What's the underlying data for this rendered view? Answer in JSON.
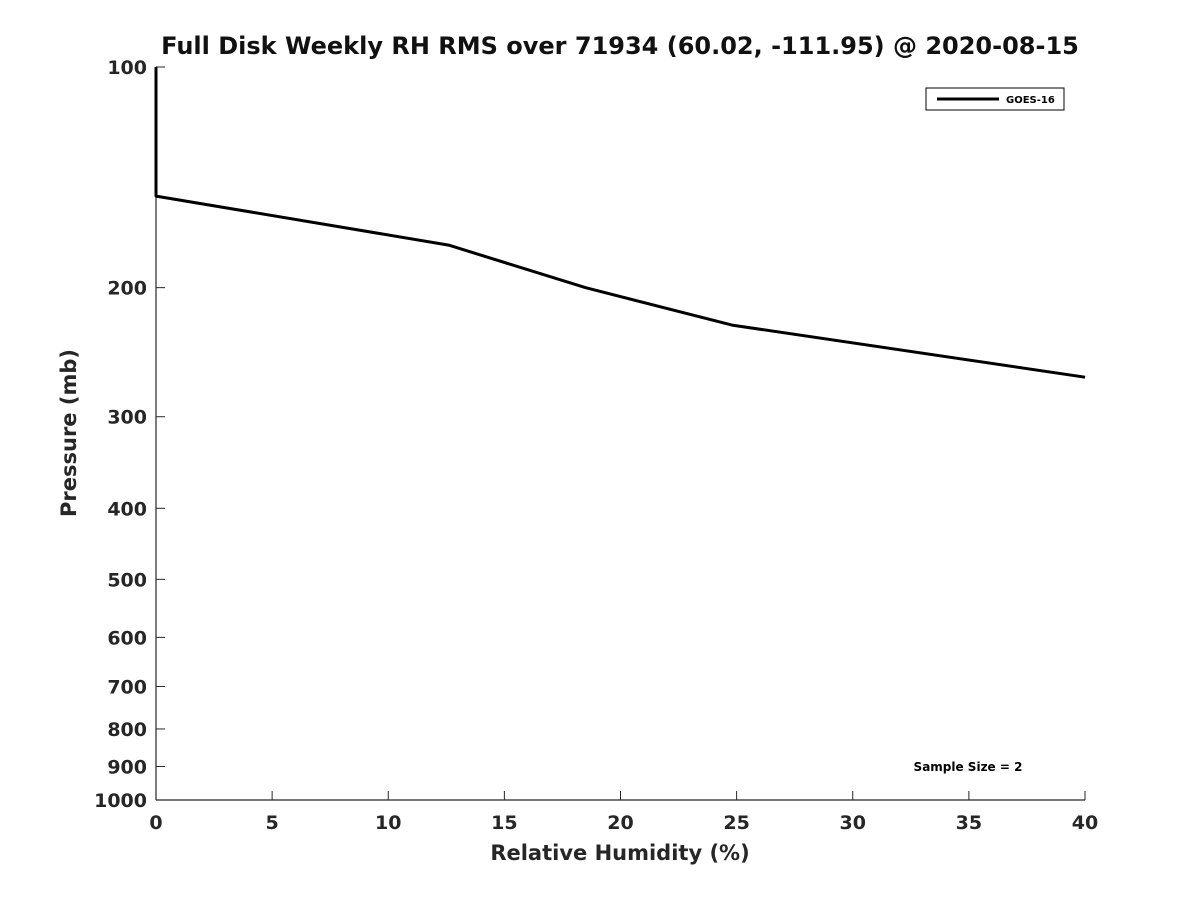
{
  "chart_data": {
    "type": "line",
    "title": "Full Disk Weekly RH RMS over 71934 (60.02, -111.95) @ 2020-08-15",
    "xlabel": "Relative Humidity (%)",
    "ylabel": "Pressure (mb)",
    "xlim": [
      0,
      40
    ],
    "ylim": [
      100,
      1000
    ],
    "yscale": "log",
    "y_reversed": true,
    "grid": false,
    "xticks": [
      0,
      5,
      10,
      15,
      20,
      25,
      30,
      35,
      40
    ],
    "xtick_labels": [
      "0",
      "5",
      "10",
      "15",
      "20",
      "25",
      "30",
      "35",
      "40"
    ],
    "yticks": [
      100,
      200,
      300,
      400,
      500,
      600,
      700,
      800,
      900,
      1000
    ],
    "ytick_labels": [
      "100",
      "200",
      "300",
      "400",
      "500",
      "600",
      "700",
      "800",
      "900",
      "1000"
    ],
    "legend_position": "top-right",
    "series": [
      {
        "name": "GOES-16",
        "color": "#000000",
        "points": [
          {
            "x": 0.0,
            "y": 100
          },
          {
            "x": 0.0,
            "y": 150
          },
          {
            "x": 12.6,
            "y": 175
          },
          {
            "x": 18.5,
            "y": 200
          },
          {
            "x": 24.8,
            "y": 225
          },
          {
            "x": 40.0,
            "y": 265
          }
        ]
      }
    ],
    "annotation": "Sample Size = 2"
  }
}
